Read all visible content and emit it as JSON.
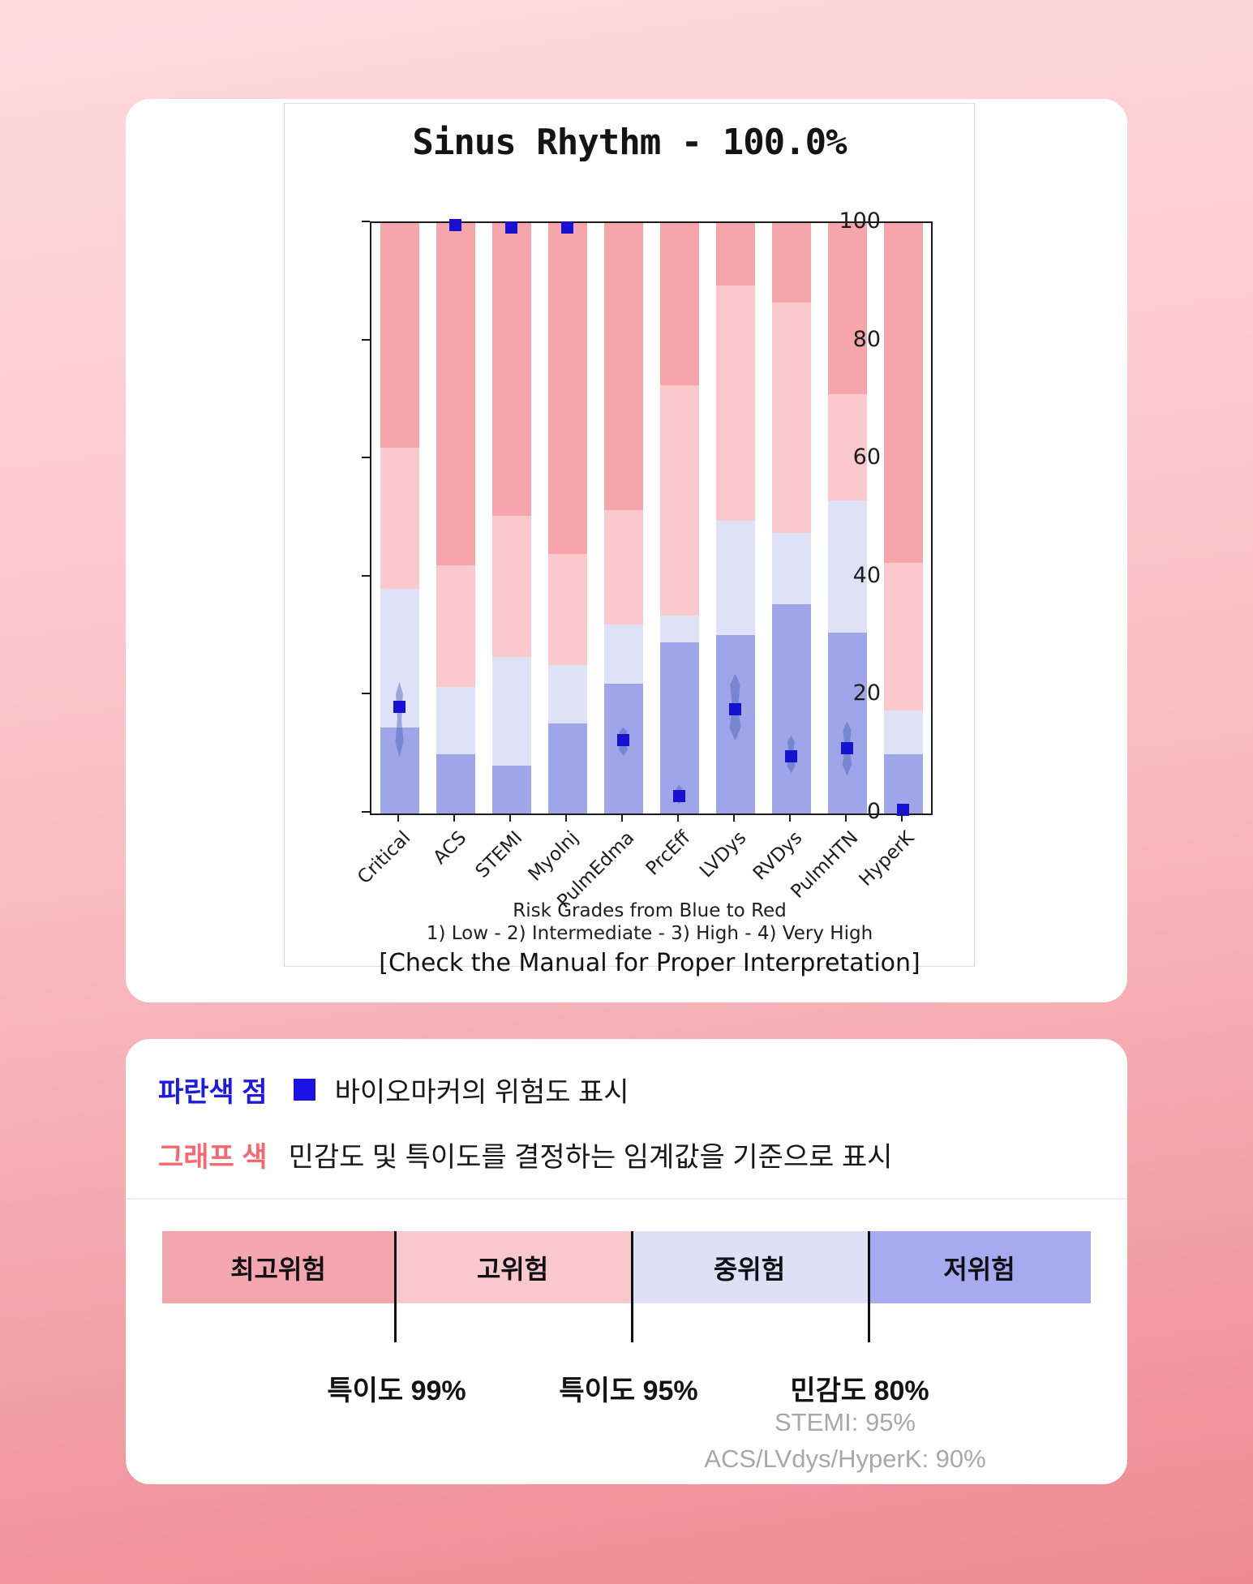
{
  "chart_data": {
    "type": "bar",
    "stacked": true,
    "title": "Sinus Rhythm - 100.0%",
    "categories": [
      "Critical",
      "ACS",
      "STEMI",
      "MyoInj",
      "PulmEdma",
      "PrcEff",
      "LVDys",
      "RVDys",
      "PulmHTN",
      "HyperK"
    ],
    "ylim": [
      0,
      100
    ],
    "y_ticks": [
      0,
      20,
      40,
      60,
      80,
      100
    ],
    "grid": false,
    "series": [
      {
        "name": "저위험 (1 Low)",
        "color": "#9fa5e9",
        "values": [
          14.6,
          10.0,
          8.1,
          15.2,
          22.0,
          29.0,
          30.2,
          35.5,
          30.7,
          10.0
        ]
      },
      {
        "name": "중위험 (2 Intermediate)",
        "color": "#dfe1f6",
        "values": [
          23.4,
          11.4,
          18.4,
          9.9,
          10.0,
          4.5,
          19.4,
          12.0,
          22.3,
          7.5
        ]
      },
      {
        "name": "고위험 (3 High)",
        "color": "#fbc9cd",
        "values": [
          24.0,
          20.6,
          23.9,
          18.9,
          19.4,
          39.0,
          39.8,
          39.0,
          18.0,
          25.0
        ]
      },
      {
        "name": "최고위험 (4 Very High)",
        "color": "#f6a6aa",
        "values": [
          38.0,
          58.0,
          49.6,
          56.0,
          48.6,
          27.5,
          10.6,
          13.5,
          29.0,
          57.5
        ]
      }
    ],
    "markers": {
      "name": "biomarker-risk-point",
      "color": "#1712d1",
      "values": [
        18.0,
        99.6,
        99.2,
        99.3,
        12.4,
        3.0,
        17.6,
        9.7,
        11.0,
        0.6
      ]
    },
    "violins": [
      [
        9.5,
        22.3
      ],
      [
        99.0,
        100.0
      ],
      [
        98.4,
        99.8
      ],
      [
        98.5,
        99.9
      ],
      [
        9.8,
        14.6
      ],
      [
        1.6,
        4.8
      ],
      [
        12.3,
        23.7
      ],
      [
        6.8,
        13.2
      ],
      [
        6.4,
        15.6
      ],
      null
    ],
    "caption_line1": "Risk Grades from Blue to Red",
    "caption_line2": "1) Low - 2) Intermediate - 3) High - 4) Very High",
    "caption_line3": "[Check the Manual for Proper Interpretation]",
    "legend_position": "none"
  },
  "legend_card": {
    "row1_label": "파란색 점",
    "row1_text": "바이오마커의 위험도 표시",
    "row2_label": "그래프 색",
    "row2_text": "민감도 및 특이도를 결정하는 임계값을 기준으로 표시",
    "marker_swatch_color": "#1b12e4",
    "bands": [
      {
        "label": "최고위험",
        "color": "#f3a6ae"
      },
      {
        "label": "고위험",
        "color": "#f9c8cc"
      },
      {
        "label": "중위험",
        "color": "#dee1f6"
      },
      {
        "label": "저위험",
        "color": "#a7aaef"
      }
    ],
    "thresholds": [
      "특이도 99%",
      "특이도 95%",
      "민감도 80%"
    ],
    "notes": [
      "STEMI: 95%",
      "ACS/LVdys/HyperK: 90%"
    ]
  }
}
